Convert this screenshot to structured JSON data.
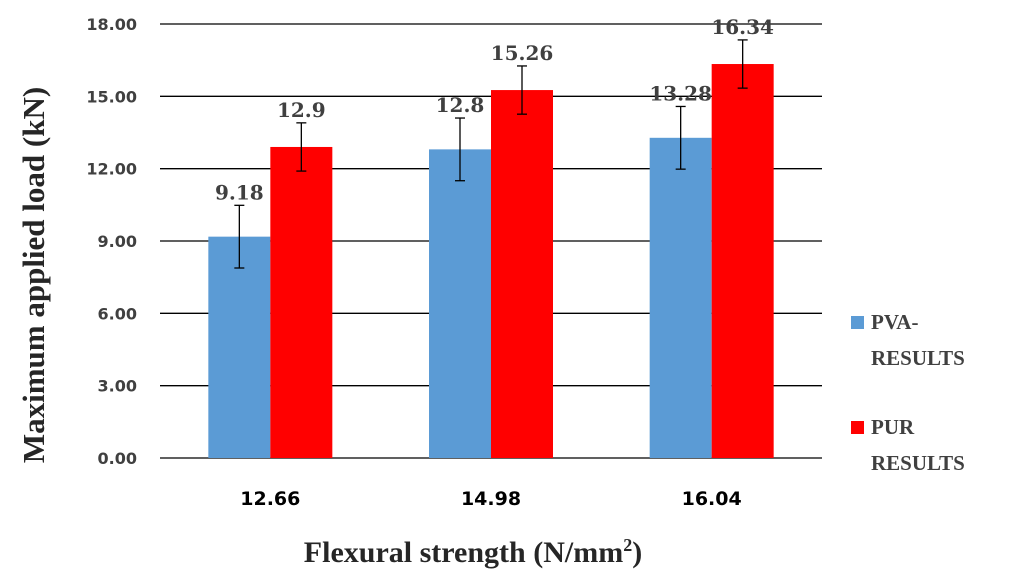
{
  "chart_data": {
    "type": "bar",
    "categories": [
      "12.66",
      "14.98",
      "16.04"
    ],
    "series": [
      {
        "name": "PVA- RESULTS",
        "legend_lines": [
          "PVA-",
          "RESULTS"
        ],
        "values": [
          9.18,
          12.8,
          13.28
        ],
        "labels": [
          "9.18",
          "12.8",
          "13.28"
        ],
        "error": [
          1.3,
          1.3,
          1.3
        ],
        "color": "#5B9BD5"
      },
      {
        "name": "PUR RESULTS",
        "legend_lines": [
          "PUR",
          "RESULTS"
        ],
        "values": [
          12.9,
          15.26,
          16.34
        ],
        "labels": [
          "12.9",
          "15.26",
          "16.34"
        ],
        "error": [
          1.0,
          1.0,
          1.0
        ],
        "color": "#FF0000"
      }
    ],
    "xlabel": "Flexural strength (N/mm",
    "xlabel_sup": "2",
    "xlabel_end": ")",
    "ylabel": "Maximum applied load (kN)",
    "ylim": [
      0,
      18
    ],
    "yticks": [
      "0.00",
      "3.00",
      "6.00",
      "9.00",
      "12.00",
      "15.00",
      "18.00"
    ],
    "ytick_values": [
      0,
      3,
      6,
      9,
      12,
      15,
      18
    ],
    "grid": true,
    "legend_position": "right"
  }
}
